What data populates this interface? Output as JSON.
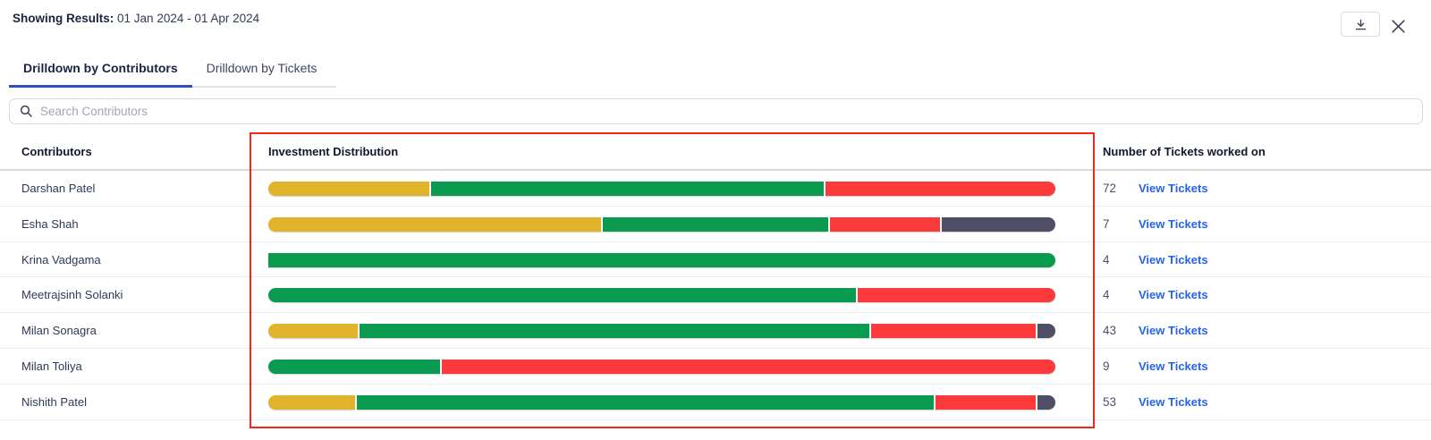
{
  "top_bar": {
    "showing_results_label": "Showing Results:",
    "date_range": "01 Jan 2024 - 01 Apr 2024",
    "icons": [
      "download-icon",
      "close-icon"
    ]
  },
  "tabs": [
    {
      "label": "Drilldown by Contributors",
      "active": true
    },
    {
      "label": "Drilldown by Tickets",
      "active": false
    }
  ],
  "search": {
    "placeholder": "Search Contributors",
    "icon": "search-icon"
  },
  "table": {
    "columns": [
      "Contributors",
      "Investment Distribution",
      "Number of Tickets worked on"
    ],
    "view_tickets_label": "View Tickets",
    "rows": [
      {
        "name": "Darshan Patel",
        "tickets": "72",
        "segments": [
          {
            "color": "yellow",
            "pct": 20.5
          },
          {
            "color": "green",
            "pct": 50.2
          },
          {
            "color": "red",
            "pct": 29.3
          }
        ]
      },
      {
        "name": "Esha Shah",
        "tickets": "7",
        "segments": [
          {
            "color": "yellow",
            "pct": 42.6
          },
          {
            "color": "green",
            "pct": 28.8
          },
          {
            "color": "red",
            "pct": 14.1
          },
          {
            "color": "dark",
            "pct": 14.5
          }
        ]
      },
      {
        "name": "Krina Vadgama",
        "tickets": "4",
        "segments": [
          {
            "color": "green",
            "pct": 100
          }
        ]
      },
      {
        "name": "Meetrajsinh Solanki",
        "tickets": "4",
        "segments": [
          {
            "color": "green",
            "pct": 74.8
          },
          {
            "color": "red",
            "pct": 25.2
          }
        ]
      },
      {
        "name": "Milan Sonagra",
        "tickets": "43",
        "segments": [
          {
            "color": "yellow",
            "pct": 11.4
          },
          {
            "color": "green",
            "pct": 65.3
          },
          {
            "color": "red",
            "pct": 21.0
          },
          {
            "color": "dark",
            "pct": 2.3
          }
        ]
      },
      {
        "name": "Milan Toliya",
        "tickets": "9",
        "segments": [
          {
            "color": "green",
            "pct": 21.9
          },
          {
            "color": "red",
            "pct": 78.1
          }
        ]
      },
      {
        "name": "Nishith Patel",
        "tickets": "53",
        "segments": [
          {
            "color": "yellow",
            "pct": 11.1
          },
          {
            "color": "green",
            "pct": 73.8
          },
          {
            "color": "red",
            "pct": 12.8
          },
          {
            "color": "dark",
            "pct": 2.3
          }
        ]
      }
    ]
  },
  "colors": {
    "yellow": "#e0b32b",
    "green": "#0a9b50",
    "red": "#fb3b3b",
    "dark": "#4f4e64",
    "tab_accent": "#2f4fc6",
    "link_blue": "#2563eb",
    "annotation_red": "#f3261c"
  },
  "annotation": {
    "type": "rectangle-outline",
    "color": "#f3261c"
  }
}
